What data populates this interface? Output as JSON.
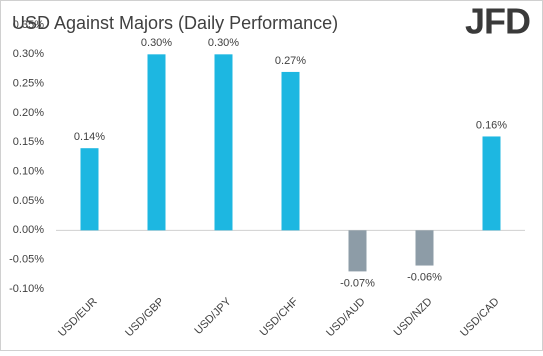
{
  "chart_data": {
    "type": "bar",
    "title": "USD Against Majors (Daily Performance)",
    "logo": "JFD",
    "categories": [
      "USD/EUR",
      "USD/GBP",
      "USD/JPY",
      "USD/CHF",
      "USD/AUD",
      "USD/NZD",
      "USD/CAD"
    ],
    "values": [
      0.14,
      0.3,
      0.3,
      0.27,
      -0.07,
      -0.06,
      0.16
    ],
    "value_labels": [
      "0.14%",
      "0.30%",
      "0.30%",
      "0.27%",
      "-0.07%",
      "-0.06%",
      "0.16%"
    ],
    "color": "#1db7e1",
    "negative_color": "#8d9ca7",
    "ylim": [
      -0.1,
      0.35
    ],
    "yticks": [
      {
        "value": -0.1,
        "label": "-0.10%"
      },
      {
        "value": -0.05,
        "label": "-0.05%"
      },
      {
        "value": 0,
        "label": "0.00%"
      },
      {
        "value": 0.05,
        "label": "0.05%"
      },
      {
        "value": 0.1,
        "label": "0.10%"
      },
      {
        "value": 0.15,
        "label": "0.15%"
      },
      {
        "value": 0.2,
        "label": "0.20%"
      },
      {
        "value": 0.25,
        "label": "0.25%"
      },
      {
        "value": 0.3,
        "label": "0.30%"
      },
      {
        "value": 0.35,
        "label": "0.35%"
      }
    ],
    "grid": false
  }
}
